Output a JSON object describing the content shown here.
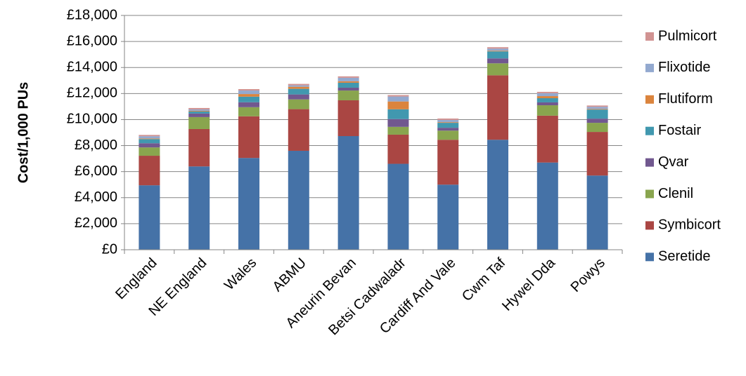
{
  "chart_data": {
    "type": "stacked-bar",
    "y_label": "Cost/1,000 PUs",
    "categories": [
      "England",
      "NE England",
      "Wales",
      "ABMU",
      "Aneurin Bevan",
      "Betsi Cadwaladr",
      "Cardiff And Vale",
      "Cwm Taf",
      "Hywel Dda",
      "Powys"
    ],
    "series": [
      {
        "name": "Seretide",
        "color": "#4572a7",
        "values": [
          4950,
          6400,
          7050,
          7600,
          8730,
          6600,
          5000,
          8450,
          6700,
          5700
        ]
      },
      {
        "name": "Symbicort",
        "color": "#aa4643",
        "values": [
          2270,
          2870,
          3200,
          3200,
          2750,
          2240,
          3450,
          4950,
          3600,
          3350
        ]
      },
      {
        "name": "Clenil",
        "color": "#89a54e",
        "values": [
          640,
          920,
          700,
          750,
          750,
          600,
          700,
          920,
          800,
          700
        ]
      },
      {
        "name": "Qvar",
        "color": "#71588f",
        "values": [
          320,
          270,
          380,
          380,
          220,
          600,
          220,
          380,
          220,
          320
        ]
      },
      {
        "name": "Fostair",
        "color": "#4198af",
        "values": [
          320,
          160,
          430,
          430,
          380,
          750,
          380,
          540,
          320,
          700
        ]
      },
      {
        "name": "Flutiform",
        "color": "#db843d",
        "values": [
          50,
          50,
          200,
          160,
          110,
          600,
          50,
          50,
          160,
          50
        ]
      },
      {
        "name": "Flixotide",
        "color": "#93a9cf",
        "values": [
          170,
          110,
          270,
          110,
          270,
          380,
          170,
          160,
          220,
          160
        ]
      },
      {
        "name": "Pulmicort",
        "color": "#d19392",
        "values": [
          100,
          110,
          110,
          110,
          110,
          110,
          110,
          110,
          110,
          100
        ]
      }
    ],
    "ylim": [
      0,
      18000
    ],
    "yticks": [
      {
        "value": 0,
        "label": "£0"
      },
      {
        "value": 2000,
        "label": "£2,000"
      },
      {
        "value": 4000,
        "label": "£4,000"
      },
      {
        "value": 6000,
        "label": "£6,000"
      },
      {
        "value": 8000,
        "label": "£8,000"
      },
      {
        "value": 10000,
        "label": "£10,000"
      },
      {
        "value": 12000,
        "label": "£12,000"
      },
      {
        "value": 14000,
        "label": "£14,000"
      },
      {
        "value": 16000,
        "label": "£16,000"
      },
      {
        "value": 18000,
        "label": "£18,000"
      }
    ],
    "grid": true,
    "legend": "right"
  }
}
